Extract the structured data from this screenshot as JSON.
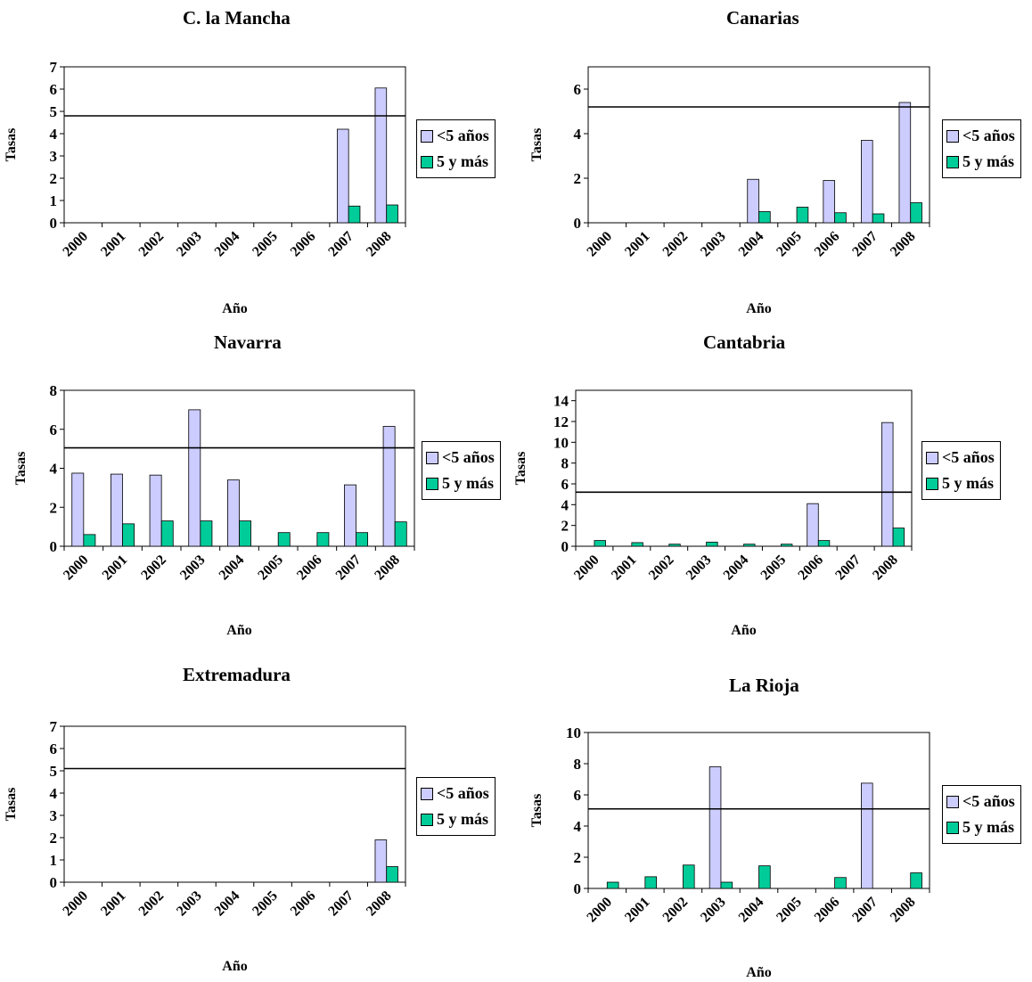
{
  "colors": {
    "under5": "#CCCCFF",
    "five_plus": "#00CC99",
    "axis": "#000000"
  },
  "legend": {
    "under5": "<5 años",
    "five_plus": "5 y más"
  },
  "chart_data": [
    {
      "type": "bar",
      "title": "C. la Mancha",
      "xlabel": "Año",
      "ylabel": "Tasas",
      "categories": [
        "2000",
        "2001",
        "2002",
        "2003",
        "2004",
        "2005",
        "2006",
        "2007",
        "2008"
      ],
      "ylim": [
        0,
        7
      ],
      "yticks": [
        "0",
        "1",
        "2",
        "3",
        "4",
        "5",
        "6",
        "7"
      ],
      "reference_line": 4.8,
      "series": [
        {
          "name": "<5 años",
          "values": [
            0,
            0,
            0,
            0,
            0,
            0,
            0,
            4.2,
            6.05
          ]
        },
        {
          "name": "5 y más",
          "values": [
            0,
            0,
            0,
            0,
            0,
            0,
            0,
            0.75,
            0.8
          ]
        }
      ]
    },
    {
      "type": "bar",
      "title": "Canarias",
      "xlabel": "Año",
      "ylabel": "Tasas",
      "categories": [
        "2000",
        "2001",
        "2002",
        "2003",
        "2004",
        "2005",
        "2006",
        "2007",
        "2008"
      ],
      "ylim": [
        0,
        7
      ],
      "yticks": [
        "0",
        "2",
        "4",
        "6"
      ],
      "reference_line": 5.2,
      "series": [
        {
          "name": "<5 años",
          "values": [
            0,
            0,
            0,
            0,
            1.95,
            0,
            1.9,
            3.7,
            5.4
          ]
        },
        {
          "name": "5 y más",
          "values": [
            0,
            0,
            0,
            0,
            0.5,
            0.7,
            0.45,
            0.4,
            0.9
          ]
        }
      ]
    },
    {
      "type": "bar",
      "title": "Navarra",
      "xlabel": "Año",
      "ylabel": "Tasas",
      "categories": [
        "2000",
        "2001",
        "2002",
        "2003",
        "2004",
        "2005",
        "2006",
        "2007",
        "2008"
      ],
      "ylim": [
        0,
        8
      ],
      "yticks": [
        "0",
        "2",
        "4",
        "6",
        "8"
      ],
      "reference_line": 5.05,
      "series": [
        {
          "name": "<5 años",
          "values": [
            3.75,
            3.7,
            3.65,
            7.0,
            3.4,
            0,
            0,
            3.15,
            6.15
          ]
        },
        {
          "name": "5 y más",
          "values": [
            0.6,
            1.15,
            1.3,
            1.3,
            1.3,
            0.7,
            0.7,
            0.7,
            1.25
          ]
        }
      ]
    },
    {
      "type": "bar",
      "title": "Cantabria",
      "xlabel": "Año",
      "ylabel": "Tasas",
      "categories": [
        "2000",
        "2001",
        "2002",
        "2003",
        "2004",
        "2005",
        "2006",
        "2007",
        "2008"
      ],
      "ylim": [
        0,
        15
      ],
      "yticks": [
        "0",
        "2",
        "4",
        "6",
        "8",
        "10",
        "12",
        "14"
      ],
      "reference_line": 5.2,
      "series": [
        {
          "name": "<5 años",
          "values": [
            0,
            0,
            0,
            0,
            0,
            0,
            4.1,
            0,
            11.9
          ]
        },
        {
          "name": "5 y más",
          "values": [
            0.55,
            0.35,
            0.2,
            0.4,
            0.2,
            0.2,
            0.55,
            0,
            1.75
          ]
        }
      ]
    },
    {
      "type": "bar",
      "title": "Extremadura",
      "xlabel": "Año",
      "ylabel": "Tasas",
      "categories": [
        "2000",
        "2001",
        "2002",
        "2003",
        "2004",
        "2005",
        "2006",
        "2007",
        "2008"
      ],
      "ylim": [
        0,
        7
      ],
      "yticks": [
        "0",
        "1",
        "2",
        "3",
        "4",
        "5",
        "6",
        "7"
      ],
      "reference_line": 5.1,
      "series": [
        {
          "name": "<5 años",
          "values": [
            0,
            0,
            0,
            0,
            0,
            0,
            0,
            0,
            1.9
          ]
        },
        {
          "name": "5 y más",
          "values": [
            0,
            0,
            0,
            0,
            0,
            0,
            0,
            0,
            0.7
          ]
        }
      ]
    },
    {
      "type": "bar",
      "title": "La Rioja",
      "xlabel": "Año",
      "ylabel": "Tasas",
      "categories": [
        "2000",
        "2001",
        "2002",
        "2003",
        "2004",
        "2005",
        "2006",
        "2007",
        "2008"
      ],
      "ylim": [
        0,
        10
      ],
      "yticks": [
        "0",
        "2",
        "4",
        "6",
        "8",
        "10"
      ],
      "reference_line": 5.1,
      "series": [
        {
          "name": "<5 años",
          "values": [
            0,
            0,
            0,
            7.8,
            0,
            0,
            0,
            6.75,
            0
          ]
        },
        {
          "name": "5 y más",
          "values": [
            0.4,
            0.75,
            1.5,
            0.4,
            1.45,
            0,
            0.7,
            0,
            1.0
          ]
        }
      ]
    }
  ]
}
